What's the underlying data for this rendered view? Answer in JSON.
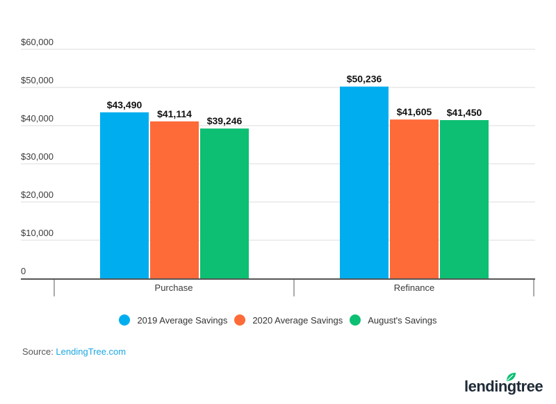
{
  "chart_data": {
    "type": "bar",
    "title": "",
    "xlabel": "",
    "ylabel": "",
    "categories": [
      "Purchase",
      "Refinance"
    ],
    "series": [
      {
        "name": "2019 Average Savings",
        "color": "#00aeef",
        "values": [
          43490,
          50236
        ],
        "labels": [
          "$43,490",
          "$50,236"
        ]
      },
      {
        "name": "2020 Average Savings",
        "color": "#ff6a39",
        "values": [
          41114,
          41605
        ],
        "labels": [
          "$41,114",
          "$41,605"
        ]
      },
      {
        "name": "August's Savings",
        "color": "#0dbf73",
        "values": [
          39246,
          41450
        ],
        "labels": [
          "$39,246",
          "$41,450"
        ]
      }
    ],
    "ylim": [
      0,
      60000
    ],
    "yticks": [
      0,
      10000,
      20000,
      30000,
      40000,
      50000,
      60000
    ],
    "ytick_labels": [
      "0",
      "$10,000",
      "$20,000",
      "$30,000",
      "$40,000",
      "$50,000",
      "$60,000"
    ],
    "grid": true,
    "legend_position": "bottom"
  },
  "source": {
    "prefix": "Source: ",
    "link_text": "LendingTree.com"
  },
  "logo": {
    "text": "lendingtree",
    "color": "#1f2a36",
    "leaf_color": "#0dbf73"
  }
}
